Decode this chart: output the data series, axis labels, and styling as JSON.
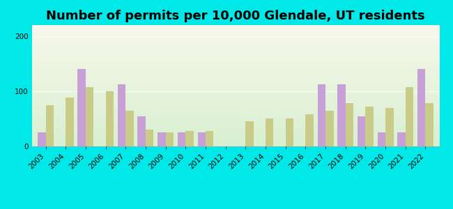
{
  "title": "Number of permits per 10,000 Glendale, UT residents",
  "years": [
    2003,
    2004,
    2005,
    2006,
    2007,
    2008,
    2009,
    2010,
    2011,
    2012,
    2013,
    2014,
    2015,
    2016,
    2017,
    2018,
    2019,
    2020,
    2021,
    2022
  ],
  "glendale": [
    25,
    0,
    140,
    0,
    113,
    55,
    25,
    25,
    25,
    0,
    0,
    0,
    0,
    0,
    113,
    113,
    55,
    25,
    25,
    140
  ],
  "utah": [
    75,
    88,
    108,
    100,
    65,
    30,
    25,
    28,
    28,
    0,
    45,
    50,
    50,
    58,
    65,
    78,
    72,
    70,
    108,
    78
  ],
  "glendale_color": "#c8a0d8",
  "utah_color": "#c8cc88",
  "background_outer": "#00e8e8",
  "ylim": [
    0,
    220
  ],
  "yticks": [
    0,
    100,
    200
  ],
  "bar_width": 0.4,
  "title_fontsize": 13,
  "tick_fontsize": 7.5,
  "legend_fontsize": 9
}
